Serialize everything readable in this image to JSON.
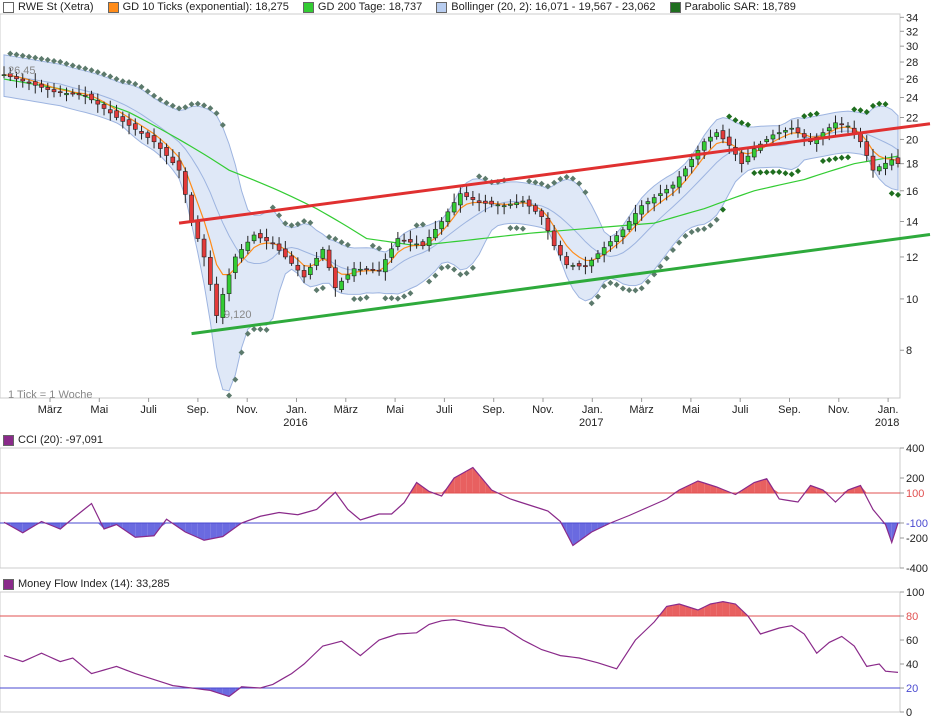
{
  "legend": [
    {
      "label": "RWE St (Xetra)",
      "color": "#ffffff"
    },
    {
      "label": "GD 10 Ticks (exponential): 18,275",
      "color": "#ff8c1a"
    },
    {
      "label": "GD 200 Tage: 18,737",
      "color": "#33cc33"
    },
    {
      "label": "Bollinger (20, 2): 16,071 - 19,567 - 23,062",
      "color": "#b8cdf0"
    },
    {
      "label": "Parabolic SAR: 18,789",
      "color": "#1f6e1f"
    }
  ],
  "colors": {
    "up_candle": "#33cc33",
    "down_candle": "#e33a3a",
    "ema": "#ff8c1a",
    "sma200": "#33cc33",
    "boll_fill": "#dfe8f7",
    "boll_line": "#9db4e0",
    "sar": "#5c7a6c",
    "sar_recent": "#1f6e1f",
    "trend_red": "#e03030",
    "trend_green": "#2eaa3c",
    "cci_line": "#8a2a8a",
    "ref_red": "#e05050",
    "ref_blue": "#4a4ad0",
    "fill_red": "#e86060",
    "fill_blue": "#6a6ae0"
  },
  "chart_data": [
    {
      "type": "candlestick",
      "title": "RWE St (Xetra)",
      "timeframe_note": "1 Tick = 1 Woche",
      "ylim": [
        6.5,
        34.5
      ],
      "y_scale": "log",
      "yticks": [
        8,
        10,
        12,
        14,
        16,
        18,
        20,
        22,
        24,
        26,
        28,
        30,
        32,
        34
      ],
      "x_month_labels": [
        "März",
        "Mai",
        "Juli",
        "Sep.",
        "Nov.",
        "Jan.",
        "März",
        "Mai",
        "Juli",
        "Sep.",
        "Nov.",
        "Jan.",
        "März",
        "Mai",
        "Juli",
        "Sep.",
        "Nov.",
        "Jan."
      ],
      "x_year_labels": [
        {
          "label": "2016",
          "month_index": 5
        },
        {
          "label": "2017",
          "month_index": 11
        },
        {
          "label": "2018",
          "month_index": 17
        }
      ],
      "annotations": [
        {
          "text": "26,45",
          "kind": "high"
        },
        {
          "text": "9,120",
          "kind": "low"
        }
      ],
      "anchors": [
        [
          0,
          26.5
        ],
        [
          8,
          24.6
        ],
        [
          13,
          24.2
        ],
        [
          18,
          22.0
        ],
        [
          24,
          19.8
        ],
        [
          28,
          17.5
        ],
        [
          30,
          14.0
        ],
        [
          32,
          12.0
        ],
        [
          34,
          9.3
        ],
        [
          37,
          12.0
        ],
        [
          40,
          13.2
        ],
        [
          43,
          12.7
        ],
        [
          45,
          12.0
        ],
        [
          48,
          11.0
        ],
        [
          51,
          12.4
        ],
        [
          53,
          10.5
        ],
        [
          56,
          11.4
        ],
        [
          60,
          11.3
        ],
        [
          63,
          13.0
        ],
        [
          67,
          12.6
        ],
        [
          70,
          14.0
        ],
        [
          73,
          15.8
        ],
        [
          76,
          15.2
        ],
        [
          80,
          15.0
        ],
        [
          83,
          15.3
        ],
        [
          86,
          14.3
        ],
        [
          88,
          12.6
        ],
        [
          90,
          11.6
        ],
        [
          93,
          11.5
        ],
        [
          96,
          12.5
        ],
        [
          99,
          13.5
        ],
        [
          102,
          15.0
        ],
        [
          105,
          15.8
        ],
        [
          107,
          16.4
        ],
        [
          109,
          17.6
        ],
        [
          112,
          19.8
        ],
        [
          114,
          20.6
        ],
        [
          116,
          19.5
        ],
        [
          118,
          18.0
        ],
        [
          120,
          19.2
        ],
        [
          123,
          20.4
        ],
        [
          126,
          21.0
        ],
        [
          129,
          19.8
        ],
        [
          131,
          20.6
        ],
        [
          133,
          21.5
        ],
        [
          135,
          21.2
        ],
        [
          137,
          19.8
        ],
        [
          139,
          17.5
        ],
        [
          142,
          18.3
        ],
        [
          143,
          18.0
        ]
      ],
      "sma200": [
        [
          0,
          26.0
        ],
        [
          10,
          24.8
        ],
        [
          20,
          22.5
        ],
        [
          28,
          20.0
        ],
        [
          36,
          17.5
        ],
        [
          44,
          16.0
        ],
        [
          50,
          14.8
        ],
        [
          58,
          13.0
        ],
        [
          66,
          12.6
        ],
        [
          74,
          12.9
        ],
        [
          84,
          13.3
        ],
        [
          94,
          13.6
        ],
        [
          104,
          13.9
        ],
        [
          112,
          14.8
        ],
        [
          120,
          16.0
        ],
        [
          128,
          16.8
        ],
        [
          136,
          18.0
        ],
        [
          143,
          18.6
        ]
      ],
      "last_values": {
        "gd10_ema": 18.275,
        "gd200": 18.737,
        "bollinger_lower": 16.071,
        "bollinger_mid": 19.567,
        "bollinger_upper": 23.062,
        "parabolic_sar": 18.789
      },
      "trendlines": [
        {
          "name": "resistance",
          "from": [
            28,
            13.9
          ],
          "to": [
            143,
            21.2
          ]
        },
        {
          "name": "support",
          "from": [
            30,
            8.6
          ],
          "to": [
            143,
            13.1
          ]
        }
      ],
      "n_weeks": 144
    },
    {
      "type": "line",
      "title": "CCI (20): -97,091",
      "ylim": [
        -400,
        400
      ],
      "yticks": [
        400,
        200,
        100,
        -100,
        -200,
        -400
      ],
      "reference_lines": [
        100,
        -100
      ],
      "anchors": [
        [
          0,
          -95
        ],
        [
          3,
          -165
        ],
        [
          6,
          -90
        ],
        [
          9,
          -140
        ],
        [
          11,
          -70
        ],
        [
          14,
          30
        ],
        [
          16,
          -140
        ],
        [
          18,
          -110
        ],
        [
          21,
          -195
        ],
        [
          24,
          -185
        ],
        [
          26,
          -75
        ],
        [
          29,
          -160
        ],
        [
          32,
          -215
        ],
        [
          35,
          -190
        ],
        [
          38,
          -100
        ],
        [
          41,
          -55
        ],
        [
          44,
          -30
        ],
        [
          47,
          -45
        ],
        [
          50,
          -10
        ],
        [
          53,
          105
        ],
        [
          55,
          -10
        ],
        [
          57,
          -80
        ],
        [
          60,
          -40
        ],
        [
          62,
          -40
        ],
        [
          64,
          35
        ],
        [
          66,
          170
        ],
        [
          68,
          110
        ],
        [
          70,
          80
        ],
        [
          72,
          200
        ],
        [
          75,
          270
        ],
        [
          78,
          120
        ],
        [
          81,
          60
        ],
        [
          84,
          20
        ],
        [
          87,
          -20
        ],
        [
          89,
          -90
        ],
        [
          91,
          -250
        ],
        [
          94,
          -160
        ],
        [
          97,
          -100
        ],
        [
          100,
          -50
        ],
        [
          103,
          5
        ],
        [
          106,
          60
        ],
        [
          108,
          120
        ],
        [
          111,
          180
        ],
        [
          114,
          140
        ],
        [
          117,
          90
        ],
        [
          120,
          170
        ],
        [
          122,
          195
        ],
        [
          124,
          60
        ],
        [
          127,
          40
        ],
        [
          129,
          150
        ],
        [
          131,
          120
        ],
        [
          133,
          40
        ],
        [
          135,
          120
        ],
        [
          137,
          150
        ],
        [
          139,
          -10
        ],
        [
          141,
          -110
        ],
        [
          142,
          -230
        ],
        [
          143,
          -100
        ]
      ]
    },
    {
      "type": "line",
      "title": "Money Flow Index (14): 33,285",
      "ylim": [
        0,
        100
      ],
      "yticks": [
        100,
        80,
        60,
        40,
        20,
        0
      ],
      "reference_lines": [
        80,
        20
      ],
      "anchors": [
        [
          0,
          47
        ],
        [
          3,
          42
        ],
        [
          6,
          49
        ],
        [
          9,
          42
        ],
        [
          11,
          45
        ],
        [
          14,
          32
        ],
        [
          18,
          38
        ],
        [
          21,
          32
        ],
        [
          24,
          27
        ],
        [
          27,
          22
        ],
        [
          30,
          20
        ],
        [
          33,
          18
        ],
        [
          36,
          13
        ],
        [
          38,
          21
        ],
        [
          41,
          20
        ],
        [
          43,
          23
        ],
        [
          46,
          32
        ],
        [
          48,
          40
        ],
        [
          51,
          55
        ],
        [
          54,
          59
        ],
        [
          57,
          47
        ],
        [
          60,
          60
        ],
        [
          63,
          65
        ],
        [
          66,
          66
        ],
        [
          68,
          73
        ],
        [
          70,
          76
        ],
        [
          72,
          77
        ],
        [
          74,
          75
        ],
        [
          77,
          72
        ],
        [
          80,
          70
        ],
        [
          83,
          60
        ],
        [
          86,
          52
        ],
        [
          89,
          47
        ],
        [
          92,
          45
        ],
        [
          95,
          41
        ],
        [
          98,
          36
        ],
        [
          101,
          60
        ],
        [
          104,
          75
        ],
        [
          106,
          88
        ],
        [
          108,
          90
        ],
        [
          111,
          85
        ],
        [
          113,
          90
        ],
        [
          115,
          92
        ],
        [
          117,
          90
        ],
        [
          119,
          80
        ],
        [
          121,
          65
        ],
        [
          124,
          70
        ],
        [
          126,
          72
        ],
        [
          128,
          65
        ],
        [
          130,
          49
        ],
        [
          132,
          58
        ],
        [
          134,
          63
        ],
        [
          136,
          55
        ],
        [
          138,
          38
        ],
        [
          140,
          40
        ],
        [
          141,
          34
        ],
        [
          143,
          33
        ]
      ]
    }
  ]
}
